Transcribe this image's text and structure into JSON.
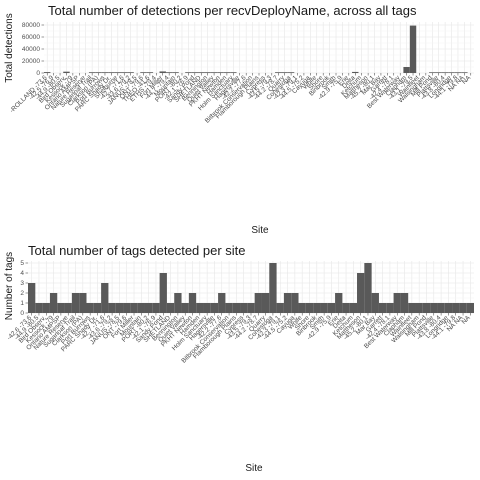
{
  "chart_data": [
    {
      "type": "bar",
      "title": "Total number of detections per recvDeployName, across all tags",
      "xlabel": "Site",
      "ylabel": "Total detections",
      "ylim": [
        0,
        85000
      ],
      "yticks": [
        "0",
        "20000",
        "40000",
        "60000",
        "80000"
      ],
      "ytick_values": [
        0,
        20000,
        40000,
        60000,
        80000
      ],
      "grid": true,
      "categories": [
        "-ROLLAND -73.6",
        "-42.5 -76.9",
        "-44.9 -80.5",
        "Bird Observ.",
        "Kessock -79",
        "Ontario AMPSP",
        "Nature Reserve",
        "Sugarloaf Trail",
        "Clarkson (PA)",
        "Port Burrows",
        "PARC Shady Dr.",
        "Shelburne",
        "-42.7 -71.6",
        "-43.6 -79.2",
        "JANUS -78.5",
        "ONT -79.6",
        "THEO -41.6",
        "ETHS -79.4",
        "Fort Miller",
        "-44.7 -79.4",
        "Mountain",
        "PORT -80.2",
        "-42.1 -76.9",
        "Sandy Pond",
        "SHETLAND",
        "Bennington",
        "Quiet Valley",
        "PKHT Newton",
        "Hamden",
        "Holm Sanctuary",
        "Hagersville",
        "-42.2 -77.6",
        "Bitbrook Conservation",
        "Flamborough Plains",
        "Cypress",
        "-43.5 -79.3",
        "-44.2 -78.7",
        "Quarry",
        "Conestoga",
        "-42.3 -79.1",
        "-44.5 -75.2",
        "Cayuga",
        "Wolfe",
        "Shore",
        "Binbrook",
        "Smith",
        "-42.9 -75.9",
        "Erie",
        "Delta",
        "Ketchum",
        "Mattheson",
        "-45.2 -80.1",
        "Mar Bay",
        "Garrett",
        "-42.4 -78.1",
        "Best Waterway",
        "Clapham",
        "-43.1 -79.5",
        "Wainfleet",
        "Walsingham",
        "Mill Pond",
        "Plattsville",
        "-43.8 -80.4",
        "Longridge",
        "-44.1 -79.8",
        "NA NA",
        "NA"
      ],
      "values": [
        1500,
        0,
        0,
        2200,
        0,
        0,
        0,
        1300,
        1300,
        1300,
        1300,
        1300,
        1300,
        1300,
        0,
        1300,
        1300,
        0,
        2600,
        1300,
        1300,
        0,
        1300,
        1300,
        1300,
        1300,
        1300,
        1300,
        1300,
        1300,
        0,
        0,
        0,
        0,
        0,
        0,
        1300,
        1300,
        1300,
        0,
        0,
        0,
        0,
        0,
        0,
        0,
        0,
        0,
        1800,
        0,
        0,
        0,
        0,
        0,
        0,
        0,
        10000,
        79000,
        0,
        0,
        1200,
        1200,
        1200,
        1200,
        1200,
        1200,
        0
      ]
    },
    {
      "type": "bar",
      "title": "Total number of tags detected per site",
      "xlabel": "Site",
      "ylabel": "Number of tags",
      "ylim": [
        0,
        5.2
      ],
      "yticks": [
        "0",
        "1",
        "2",
        "3",
        "4",
        "5"
      ],
      "ytick_values": [
        0,
        1,
        2,
        3,
        4,
        5
      ],
      "grid": true,
      "categories": [
        "-42.6 -73.6",
        "-44.9 -80.5",
        "Bird Observ.",
        "Kessock -79",
        "Ontario AMPSP",
        "Nature Reserve",
        "Sugarloaf Trail",
        "Clarkson (PA)",
        "Port Burrows",
        "PARC Shady Dr.",
        "-42.7 -71.6",
        "-43.6 -79.2",
        "JANUS -78.5",
        "ONT -79.6",
        "Fort Miller",
        "Mountain",
        "PORT -80.2",
        "-42.1 -76.9",
        "Sandy Pond",
        "SHETLAND",
        "Bennington",
        "Quiet Valley",
        "PKHT Newton",
        "Hamden",
        "Holm Sanctuary",
        "Hagersville",
        "-42.2 -77.6",
        "Bitbrook Conservation",
        "Flamborough Plains",
        "Cypress",
        "-43.5 -79.3",
        "-44.2 -78.7",
        "Quarry",
        "Conestoga",
        "-42.3 -79.1",
        "-44.5 -75.2",
        "Cayuga",
        "Wolfe",
        "Shore",
        "Binbrook",
        "Smith",
        "-42.9 -75.9",
        "Erie",
        "Delta",
        "Ketchum",
        "Mattheson",
        "-45.2 -80.1",
        "Mar Bay",
        "Garrett",
        "-42.4 -78.1",
        "Best Waterway",
        "Clapham",
        "Wainfleet",
        "Walsingham",
        "Mill Pond",
        "Plattsville",
        "-43.8 -80.4",
        "Longridge",
        "-44.1 -79.8",
        "NA NA",
        "NA"
      ],
      "values": [
        3,
        1,
        1,
        2,
        1,
        1,
        2,
        2,
        1,
        1,
        3,
        1,
        1,
        1,
        1,
        1,
        1,
        1,
        4,
        1,
        2,
        1,
        2,
        1,
        1,
        1,
        2,
        1,
        1,
        1,
        1,
        2,
        2,
        5,
        1,
        2,
        2,
        1,
        1,
        1,
        1,
        1,
        2,
        1,
        1,
        4,
        5,
        2,
        1,
        1,
        2,
        2,
        1,
        1,
        1,
        1,
        1,
        1,
        1,
        1,
        1
      ]
    }
  ]
}
